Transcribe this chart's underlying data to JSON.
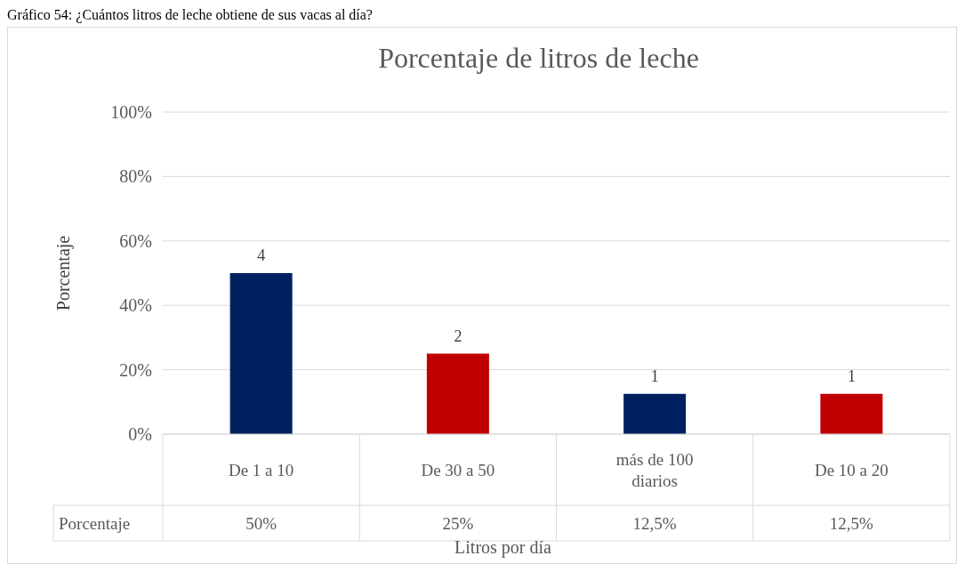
{
  "chart_data": {
    "type": "bar",
    "title": "Porcentaje de litros de leche",
    "xlabel": "Litros por día",
    "ylabel": "Porcentaje",
    "categories": [
      "De 1 a 10",
      "De 30 a 50",
      "más de 100 diarios",
      "De 10 a 20"
    ],
    "series": [
      {
        "name": "Porcentaje",
        "colors": [
          "#002060",
          "#c00000",
          "#002060",
          "#c00000"
        ],
        "values": [
          50,
          25,
          12.5,
          12.5
        ],
        "value_labels": [
          "50%",
          "25%",
          "12,5%",
          "12,5%"
        ]
      }
    ],
    "ylim": [
      0,
      100
    ],
    "yticks": [
      {
        "value": 0,
        "label": "0%"
      },
      {
        "value": 20,
        "label": "20%"
      },
      {
        "value": 40,
        "label": "40%"
      },
      {
        "value": 60,
        "label": "60%"
      },
      {
        "value": 80,
        "label": "80%"
      },
      {
        "value": 100,
        "label": "100%"
      }
    ],
    "grid": "y",
    "annotations": [
      "Gráfico 54: ¿Cuántos litros de leche obtiene de sus vacas al día?",
      {
        "text": "4",
        "x": "De 1 a 10",
        "y": 50
      },
      {
        "text": "2",
        "x": "De 30 a 50",
        "y": 25
      },
      {
        "text": "1",
        "x": "más de 100 diarios",
        "y": 12.5
      },
      {
        "text": "1",
        "x": "De 10 a 20",
        "y": 12.5
      }
    ]
  }
}
